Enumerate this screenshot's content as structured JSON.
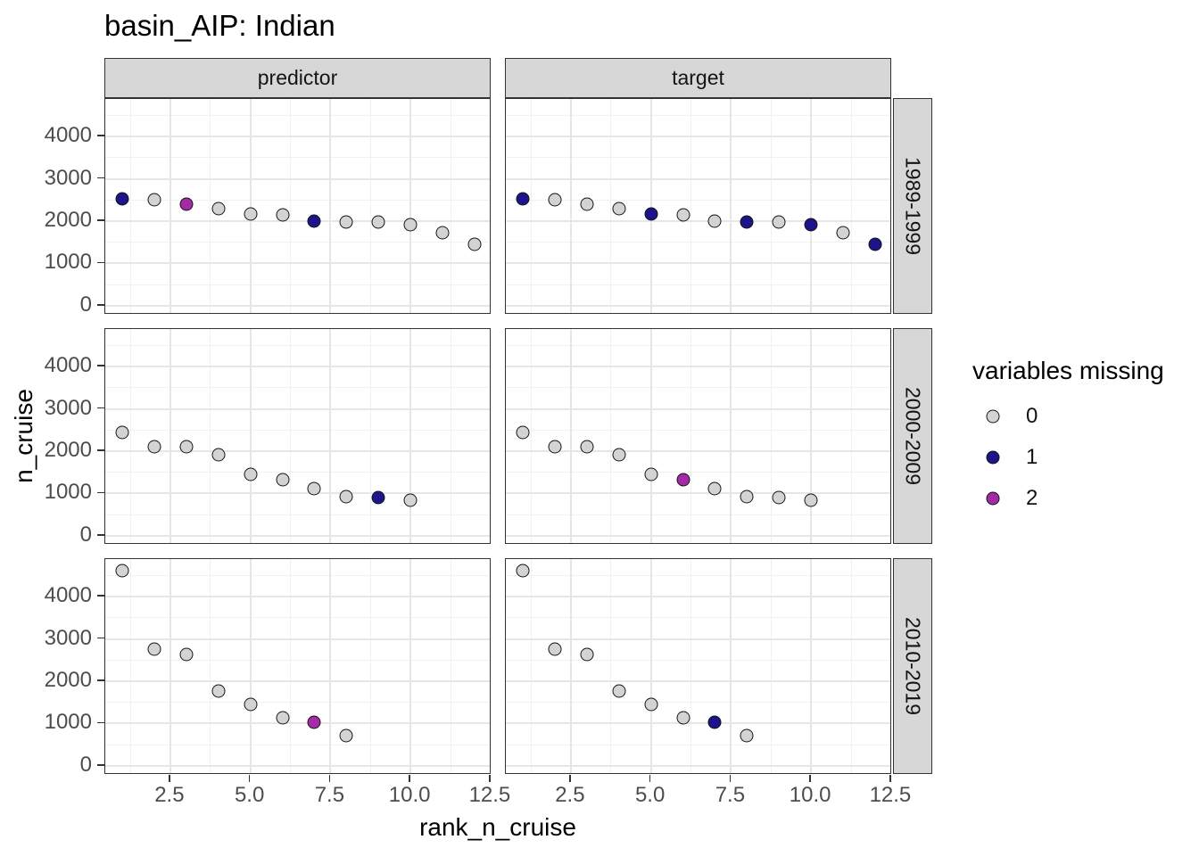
{
  "title": "basin_AIP: Indian",
  "colors": {
    "point_stroke": "#141414",
    "strip_bg": "#D7D7D7",
    "panel_border": "#333333",
    "grid_major": "#E6E6E6",
    "grid_minor": "#F1F1F1",
    "axis_text": "#4D4D4D",
    "text": "#000000"
  },
  "chart_data": {
    "type": "scatter",
    "title": "basin_AIP: Indian",
    "xlabel": "rank_n_cruise",
    "ylabel": "n_cruise",
    "facet_columns": [
      "predictor",
      "target"
    ],
    "facet_rows": [
      "1989-1999",
      "2000-2009",
      "2010-2019"
    ],
    "x_ticks": [
      2.5,
      5.0,
      7.5,
      10.0,
      12.5
    ],
    "x_tick_labels": [
      "2.5",
      "5.0",
      "7.5",
      "10.0",
      "12.5"
    ],
    "x_minor_ticks": [
      1.25,
      3.75,
      6.25,
      8.75,
      11.25
    ],
    "y_ticks": [
      0,
      1000,
      2000,
      3000,
      4000
    ],
    "y_tick_labels": [
      "0",
      "1000",
      "2000",
      "3000",
      "4000"
    ],
    "y_minor_ticks": [
      500,
      1500,
      2500,
      3500,
      4500
    ],
    "xlim": [
      0.47,
      12.53
    ],
    "ylim": [
      -215,
      4890
    ],
    "grid": true,
    "legend": {
      "title": "variables missing",
      "position": "right",
      "entries": [
        {
          "label": "0",
          "color": "#D3D3D3"
        },
        {
          "label": "1",
          "color": "#1E148A"
        },
        {
          "label": "2",
          "color": "#A42BA6"
        }
      ]
    },
    "series": [
      {
        "facet_row": "1989-1999",
        "x": [
          1,
          2,
          3,
          4,
          5,
          6,
          7,
          8,
          9,
          10,
          11,
          12
        ],
        "y": [
          2530,
          2505,
          2410,
          2290,
          2170,
          2150,
          2005,
          1985,
          1985,
          1920,
          1725,
          1445
        ],
        "missing_by_column": {
          "predictor": [
            1,
            0,
            2,
            0,
            0,
            0,
            1,
            0,
            0,
            0,
            0,
            0
          ],
          "target": [
            1,
            0,
            0,
            0,
            1,
            0,
            0,
            1,
            0,
            1,
            0,
            1
          ]
        }
      },
      {
        "facet_row": "2000-2009",
        "x": [
          1,
          2,
          3,
          4,
          5,
          6,
          7,
          8,
          9,
          10
        ],
        "y": [
          2445,
          2110,
          2100,
          1920,
          1455,
          1315,
          1120,
          915,
          905,
          845
        ],
        "missing_by_column": {
          "predictor": [
            0,
            0,
            0,
            0,
            0,
            0,
            0,
            0,
            1,
            0
          ],
          "target": [
            0,
            0,
            0,
            0,
            0,
            2,
            0,
            0,
            0,
            0
          ]
        }
      },
      {
        "facet_row": "2010-2019",
        "x": [
          1,
          2,
          3,
          4,
          5,
          6,
          7,
          8
        ],
        "y": [
          4610,
          2760,
          2625,
          1760,
          1460,
          1125,
          1020,
          705
        ],
        "missing_by_column": {
          "predictor": [
            0,
            0,
            0,
            0,
            0,
            0,
            2,
            0
          ],
          "target": [
            0,
            0,
            0,
            0,
            0,
            0,
            1,
            0
          ]
        }
      }
    ]
  }
}
